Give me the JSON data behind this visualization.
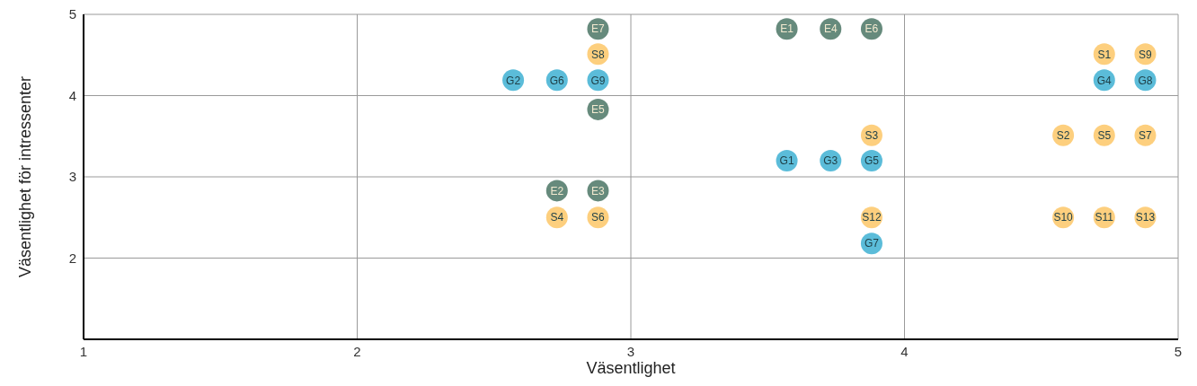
{
  "chart_data": {
    "type": "scatter",
    "xlabel": "Väsentlighet",
    "ylabel": "Väsentlighet för intressenter",
    "xlim": [
      1,
      5
    ],
    "xticks": [
      1,
      2,
      3,
      4,
      5
    ],
    "ylim": [
      1,
      5
    ],
    "yticks": [
      {
        "value": 1,
        "label": null
      },
      2,
      3,
      4,
      5
    ],
    "grid": true,
    "marker": "circle",
    "series": [
      {
        "color": "#668a7c",
        "x": [
          2.88,
          3.57,
          3.73,
          3.88,
          2.88,
          2.73,
          2.88
        ],
        "values": [
          4.82,
          4.82,
          4.82,
          4.82,
          3.83,
          2.83,
          2.83
        ]
      },
      {
        "color": "#5bbcd9",
        "x": [
          2.57,
          2.73,
          2.88,
          4.73,
          4.88,
          3.57,
          3.73,
          3.88,
          3.88
        ],
        "values": [
          4.19,
          4.19,
          4.19,
          4.19,
          4.19,
          3.2,
          3.2,
          3.2,
          2.18
        ]
      },
      {
        "color": "#fdcf7e",
        "x": [
          2.88,
          4.73,
          4.88,
          3.88,
          4.58,
          4.73,
          4.88,
          2.73,
          2.88,
          3.88,
          4.58,
          4.73,
          4.88
        ],
        "values": [
          4.51,
          4.51,
          4.51,
          3.51,
          3.51,
          3.51,
          3.51,
          2.5,
          2.5,
          2.5,
          2.5,
          2.5,
          2.5
        ]
      }
    ],
    "annotations": [
      {
        "text": "E7",
        "x": 2.88,
        "y": 4.82
      },
      {
        "text": "E1",
        "x": 3.57,
        "y": 4.82
      },
      {
        "text": "E4",
        "x": 3.73,
        "y": 4.82
      },
      {
        "text": "E6",
        "x": 3.88,
        "y": 4.82
      },
      {
        "text": "E5",
        "x": 2.88,
        "y": 3.83
      },
      {
        "text": "E2",
        "x": 2.73,
        "y": 2.83
      },
      {
        "text": "E3",
        "x": 2.88,
        "y": 2.83
      },
      {
        "text": "G2",
        "x": 2.57,
        "y": 4.19
      },
      {
        "text": "G6",
        "x": 2.73,
        "y": 4.19
      },
      {
        "text": "G9",
        "x": 2.88,
        "y": 4.19
      },
      {
        "text": "G4",
        "x": 4.73,
        "y": 4.19
      },
      {
        "text": "G8",
        "x": 4.88,
        "y": 4.19
      },
      {
        "text": "G1",
        "x": 3.57,
        "y": 3.2
      },
      {
        "text": "G3",
        "x": 3.73,
        "y": 3.2
      },
      {
        "text": "G5",
        "x": 3.88,
        "y": 3.2
      },
      {
        "text": "G7",
        "x": 3.88,
        "y": 2.18
      },
      {
        "text": "S8",
        "x": 2.88,
        "y": 4.51
      },
      {
        "text": "S1",
        "x": 4.73,
        "y": 4.51
      },
      {
        "text": "S9",
        "x": 4.88,
        "y": 4.51
      },
      {
        "text": "S3",
        "x": 3.88,
        "y": 3.51
      },
      {
        "text": "S2",
        "x": 4.58,
        "y": 3.51
      },
      {
        "text": "S5",
        "x": 4.73,
        "y": 3.51
      },
      {
        "text": "S7",
        "x": 4.88,
        "y": 3.51
      },
      {
        "text": "S4",
        "x": 2.73,
        "y": 2.5
      },
      {
        "text": "S6",
        "x": 2.88,
        "y": 2.5
      },
      {
        "text": "S12",
        "x": 3.88,
        "y": 2.5
      },
      {
        "text": "S10",
        "x": 4.58,
        "y": 2.5
      },
      {
        "text": "S11",
        "x": 4.73,
        "y": 2.5
      },
      {
        "text": "S13",
        "x": 4.88,
        "y": 2.5
      }
    ]
  }
}
